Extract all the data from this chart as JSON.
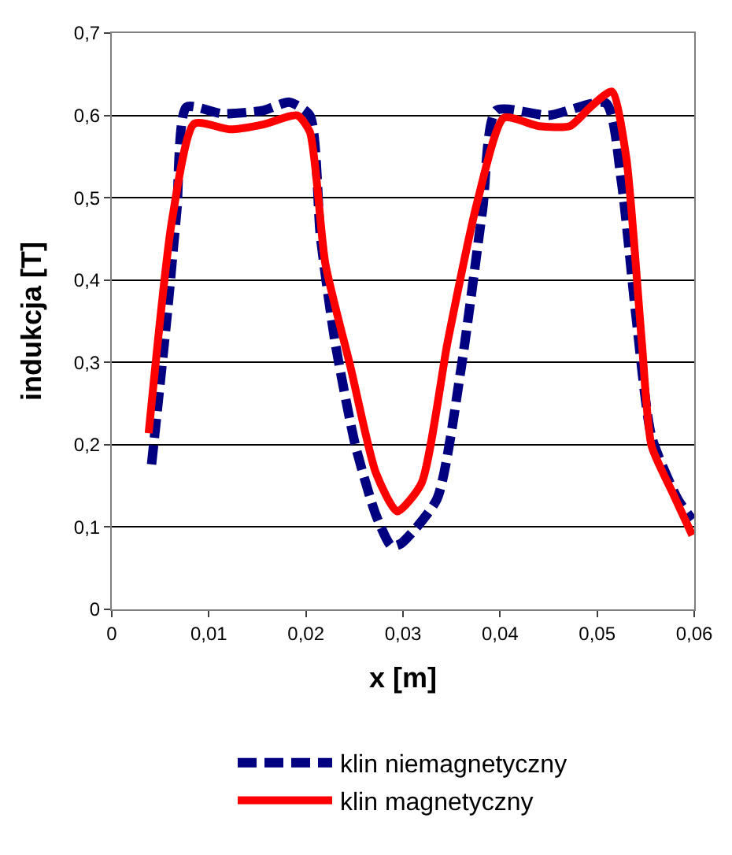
{
  "chart_data": {
    "type": "line",
    "xlabel": "x [m]",
    "ylabel": "indukcja [T]",
    "xlim": [
      0,
      0.06
    ],
    "ylim": [
      0,
      0.7
    ],
    "xticks": [
      0,
      {
        "value": 0.01,
        "label": "0,01"
      },
      {
        "value": 0.02,
        "label": "0,02"
      },
      {
        "value": 0.03,
        "label": "0,03"
      },
      {
        "value": 0.04,
        "label": "0,04"
      },
      {
        "value": 0.05,
        "label": "0,05"
      },
      {
        "value": 0.06,
        "label": "0,06"
      }
    ],
    "yticks": [
      0,
      {
        "value": 0.1,
        "label": "0,1"
      },
      {
        "value": 0.2,
        "label": "0,2"
      },
      {
        "value": 0.3,
        "label": "0,3"
      },
      {
        "value": 0.4,
        "label": "0,4"
      },
      {
        "value": 0.5,
        "label": "0,5"
      },
      {
        "value": 0.6,
        "label": "0,6"
      },
      {
        "value": 0.7,
        "label": "0,7"
      }
    ],
    "grid": "y",
    "legend": "bottom",
    "marker": "none",
    "series": [
      {
        "name": "klin niemagnetyczny",
        "color": "#000080",
        "line_style": "dashed",
        "x": [
          0.0041,
          0.0057,
          0.0067,
          0.0077,
          0.0114,
          0.0156,
          0.0183,
          0.0204,
          0.0215,
          0.023,
          0.0251,
          0.0272,
          0.0288,
          0.0298,
          0.0335,
          0.036,
          0.0382,
          0.0396,
          0.045,
          0.0509,
          0.0525,
          0.054,
          0.0556,
          0.0583,
          0.0598
        ],
        "values": [
          0.176,
          0.357,
          0.485,
          0.61,
          0.602,
          0.606,
          0.616,
          0.6,
          0.453,
          0.325,
          0.199,
          0.115,
          0.077,
          0.08,
          0.134,
          0.294,
          0.486,
          0.606,
          0.6,
          0.615,
          0.52,
          0.357,
          0.21,
          0.134,
          0.109
        ]
      },
      {
        "name": "klin magnetyczny",
        "color": "#ff0000",
        "line_style": "solid",
        "x": [
          0.0038,
          0.0062,
          0.0085,
          0.0122,
          0.0156,
          0.0191,
          0.0204,
          0.022,
          0.0246,
          0.0272,
          0.0294,
          0.0319,
          0.0346,
          0.0377,
          0.0404,
          0.044,
          0.0472,
          0.0493,
          0.0515,
          0.053,
          0.0546,
          0.0556,
          0.0578,
          0.0598
        ],
        "values": [
          0.214,
          0.472,
          0.59,
          0.583,
          0.589,
          0.6,
          0.58,
          0.42,
          0.294,
          0.166,
          0.119,
          0.153,
          0.325,
          0.497,
          0.597,
          0.587,
          0.587,
          0.61,
          0.629,
          0.549,
          0.325,
          0.199,
          0.141,
          0.09
        ]
      }
    ]
  }
}
